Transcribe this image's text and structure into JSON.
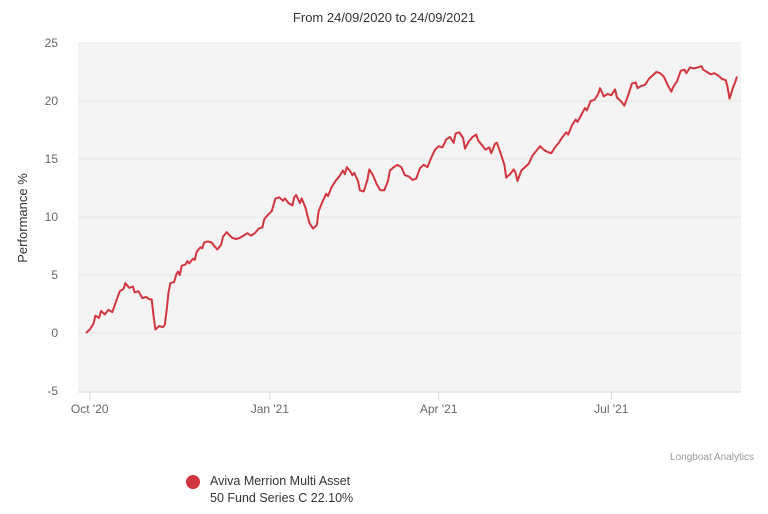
{
  "chart_data": {
    "type": "line",
    "title": "From 24/09/2020 to 24/09/2021",
    "xlabel": "",
    "ylabel": "Performance %",
    "ylim": [
      -5,
      25
    ],
    "yticks": [
      -5,
      0,
      5,
      10,
      15,
      20,
      25
    ],
    "xticks": [
      {
        "label": "Oct '20",
        "day": 2
      },
      {
        "label": "Jan '21",
        "day": 98
      },
      {
        "label": "Apr '21",
        "day": 188
      },
      {
        "label": "Jul '21",
        "day": 280
      }
    ],
    "grid": true,
    "legend_position": "bottom-left",
    "series": [
      {
        "name": "Aviva Merrion Multi Asset 50 Fund Series C 22.10%",
        "color": "#d1363f",
        "points": [
          [
            0,
            0.0
          ],
          [
            2,
            0.3
          ],
          [
            4,
            0.8
          ],
          [
            5,
            1.5
          ],
          [
            7,
            1.3
          ],
          [
            8,
            1.9
          ],
          [
            10,
            1.6
          ],
          [
            12,
            2.0
          ],
          [
            14,
            1.8
          ],
          [
            16,
            2.7
          ],
          [
            18,
            3.6
          ],
          [
            20,
            3.8
          ],
          [
            21,
            4.3
          ],
          [
            23,
            3.9
          ],
          [
            25,
            4.0
          ],
          [
            26,
            3.5
          ],
          [
            28,
            3.6
          ],
          [
            30,
            3.0
          ],
          [
            32,
            3.1
          ],
          [
            34,
            2.9
          ],
          [
            35,
            2.9
          ],
          [
            36,
            1.5
          ],
          [
            37,
            0.3
          ],
          [
            39,
            0.6
          ],
          [
            41,
            0.5
          ],
          [
            42,
            0.7
          ],
          [
            43,
            2.0
          ],
          [
            44,
            3.5
          ],
          [
            45,
            4.3
          ],
          [
            47,
            4.4
          ],
          [
            48,
            5.0
          ],
          [
            49,
            5.3
          ],
          [
            50,
            5.0
          ],
          [
            51,
            5.8
          ],
          [
            53,
            5.9
          ],
          [
            54,
            6.2
          ],
          [
            55,
            6.0
          ],
          [
            57,
            6.4
          ],
          [
            58,
            6.3
          ],
          [
            59,
            7.0
          ],
          [
            61,
            7.4
          ],
          [
            62,
            7.3
          ],
          [
            63,
            7.8
          ],
          [
            65,
            7.9
          ],
          [
            67,
            7.8
          ],
          [
            69,
            7.4
          ],
          [
            70,
            7.2
          ],
          [
            72,
            7.6
          ],
          [
            73,
            8.3
          ],
          [
            75,
            8.7
          ],
          [
            76,
            8.5
          ],
          [
            78,
            8.2
          ],
          [
            80,
            8.1
          ],
          [
            82,
            8.2
          ],
          [
            84,
            8.4
          ],
          [
            86,
            8.6
          ],
          [
            88,
            8.4
          ],
          [
            90,
            8.6
          ],
          [
            92,
            9.0
          ],
          [
            94,
            9.1
          ],
          [
            95,
            9.8
          ],
          [
            97,
            10.2
          ],
          [
            99,
            10.5
          ],
          [
            101,
            11.6
          ],
          [
            103,
            11.7
          ],
          [
            105,
            11.4
          ],
          [
            106,
            11.6
          ],
          [
            108,
            11.2
          ],
          [
            110,
            11.0
          ],
          [
            111,
            11.7
          ],
          [
            112,
            11.9
          ],
          [
            114,
            11.2
          ],
          [
            115,
            11.6
          ],
          [
            117,
            10.8
          ],
          [
            119,
            9.5
          ],
          [
            121,
            9.0
          ],
          [
            123,
            9.3
          ],
          [
            124,
            10.5
          ],
          [
            126,
            11.3
          ],
          [
            128,
            12.0
          ],
          [
            129,
            11.8
          ],
          [
            131,
            12.6
          ],
          [
            133,
            13.1
          ],
          [
            135,
            13.5
          ],
          [
            137,
            14.0
          ],
          [
            138,
            13.7
          ],
          [
            139,
            14.3
          ],
          [
            141,
            13.9
          ],
          [
            142,
            13.6
          ],
          [
            143,
            13.8
          ],
          [
            145,
            13.1
          ],
          [
            146,
            12.3
          ],
          [
            148,
            12.2
          ],
          [
            150,
            13.2
          ],
          [
            151,
            14.1
          ],
          [
            153,
            13.6
          ],
          [
            155,
            12.8
          ],
          [
            157,
            12.3
          ],
          [
            159,
            12.3
          ],
          [
            161,
            13.1
          ],
          [
            162,
            14.0
          ],
          [
            164,
            14.3
          ],
          [
            166,
            14.5
          ],
          [
            168,
            14.3
          ],
          [
            170,
            13.6
          ],
          [
            172,
            13.5
          ],
          [
            174,
            13.2
          ],
          [
            176,
            13.3
          ],
          [
            178,
            14.2
          ],
          [
            180,
            14.5
          ],
          [
            182,
            14.3
          ],
          [
            184,
            15.1
          ],
          [
            186,
            15.8
          ],
          [
            188,
            16.1
          ],
          [
            190,
            16.0
          ],
          [
            192,
            16.7
          ],
          [
            194,
            16.9
          ],
          [
            196,
            16.4
          ],
          [
            197,
            17.2
          ],
          [
            199,
            17.3
          ],
          [
            201,
            16.8
          ],
          [
            202,
            15.9
          ],
          [
            204,
            16.5
          ],
          [
            206,
            16.9
          ],
          [
            208,
            17.1
          ],
          [
            209,
            16.6
          ],
          [
            211,
            16.2
          ],
          [
            213,
            15.8
          ],
          [
            215,
            16.0
          ],
          [
            216,
            15.5
          ],
          [
            218,
            16.3
          ],
          [
            219,
            16.4
          ],
          [
            221,
            15.5
          ],
          [
            223,
            14.5
          ],
          [
            224,
            13.4
          ],
          [
            226,
            13.7
          ],
          [
            228,
            14.1
          ],
          [
            229,
            13.8
          ],
          [
            230,
            13.1
          ],
          [
            232,
            14.0
          ],
          [
            234,
            14.3
          ],
          [
            236,
            14.6
          ],
          [
            238,
            15.3
          ],
          [
            240,
            15.7
          ],
          [
            242,
            16.1
          ],
          [
            244,
            15.8
          ],
          [
            246,
            15.6
          ],
          [
            248,
            15.5
          ],
          [
            250,
            16.0
          ],
          [
            252,
            16.4
          ],
          [
            254,
            16.9
          ],
          [
            256,
            17.3
          ],
          [
            257,
            17.1
          ],
          [
            259,
            17.9
          ],
          [
            261,
            18.4
          ],
          [
            262,
            18.2
          ],
          [
            264,
            18.8
          ],
          [
            266,
            19.4
          ],
          [
            267,
            19.2
          ],
          [
            269,
            20.0
          ],
          [
            271,
            20.1
          ],
          [
            273,
            20.6
          ],
          [
            274,
            21.1
          ],
          [
            276,
            20.4
          ],
          [
            278,
            20.6
          ],
          [
            280,
            20.5
          ],
          [
            282,
            21.0
          ],
          [
            283,
            20.3
          ],
          [
            285,
            20.0
          ],
          [
            287,
            19.6
          ],
          [
            289,
            20.5
          ],
          [
            291,
            21.5
          ],
          [
            293,
            21.6
          ],
          [
            294,
            21.1
          ],
          [
            296,
            21.3
          ],
          [
            298,
            21.4
          ],
          [
            300,
            21.9
          ],
          [
            302,
            22.2
          ],
          [
            304,
            22.5
          ],
          [
            306,
            22.4
          ],
          [
            308,
            22.1
          ],
          [
            310,
            21.4
          ],
          [
            312,
            20.8
          ],
          [
            313,
            21.2
          ],
          [
            315,
            21.7
          ],
          [
            317,
            22.6
          ],
          [
            319,
            22.7
          ],
          [
            320,
            22.4
          ],
          [
            322,
            22.9
          ],
          [
            324,
            22.8
          ],
          [
            326,
            22.9
          ],
          [
            328,
            23.0
          ],
          [
            329,
            22.7
          ],
          [
            331,
            22.5
          ],
          [
            333,
            22.3
          ],
          [
            335,
            22.4
          ],
          [
            337,
            22.2
          ],
          [
            339,
            21.9
          ],
          [
            341,
            21.8
          ],
          [
            342,
            21.2
          ],
          [
            343,
            20.2
          ],
          [
            345,
            21.2
          ],
          [
            346,
            21.6
          ],
          [
            347,
            22.1
          ]
        ]
      }
    ]
  },
  "title": "From 24/09/2020 to 24/09/2021",
  "y_axis": {
    "label": "Performance %",
    "ticks": [
      "25",
      "20",
      "15",
      "10",
      "5",
      "0",
      "-5"
    ]
  },
  "x_axis": {
    "ticks": [
      "Oct '20",
      "Jan '21",
      "Apr '21",
      "Jul '21"
    ]
  },
  "legend": {
    "line1": "Aviva Merrion Multi Asset",
    "line2": "50 Fund Series C 22.10%",
    "color": "#d1363f"
  },
  "credits": "Longboat Analytics"
}
